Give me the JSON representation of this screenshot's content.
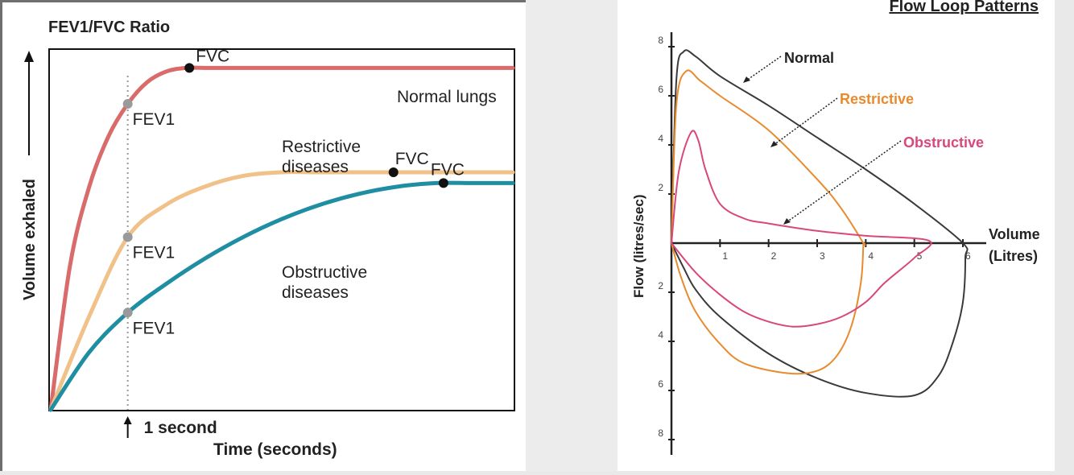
{
  "chart_data": [
    {
      "type": "line",
      "title": "FEV1/FVC Ratio",
      "xlabel": "Time (seconds)",
      "ylabel": "Volume exhaled",
      "x_marker_label": "1 second",
      "x_marker_value": 1,
      "xlim": [
        0,
        6
      ],
      "ylim": [
        0,
        1
      ],
      "grid": false,
      "legend": "none",
      "series": [
        {
          "name": "Normal lungs",
          "color": "#d96b6b",
          "x": [
            0,
            0.25,
            0.5,
            0.75,
            1.0,
            1.25,
            1.5,
            1.75,
            2.0,
            2.5,
            3.0,
            4.0,
            5.0,
            6.0
          ],
          "values": [
            0,
            0.4,
            0.62,
            0.76,
            0.85,
            0.91,
            0.94,
            0.95,
            0.95,
            0.95,
            0.95,
            0.95,
            0.95,
            0.95
          ],
          "fev1": {
            "x": 1.0,
            "y": 0.85,
            "label": "FEV1"
          },
          "fvc": {
            "x": 1.8,
            "y": 0.95,
            "label": "FVC"
          }
        },
        {
          "name": "Restrictive diseases",
          "color": "#f0c28a",
          "x": [
            0,
            0.5,
            1.0,
            1.5,
            2.0,
            2.5,
            3.0,
            3.5,
            4.0,
            4.5,
            5.0,
            5.5,
            6.0
          ],
          "values": [
            0,
            0.26,
            0.48,
            0.57,
            0.62,
            0.65,
            0.66,
            0.66,
            0.66,
            0.66,
            0.66,
            0.66,
            0.66
          ],
          "fev1": {
            "x": 1.0,
            "y": 0.48,
            "label": "FEV1"
          },
          "fvc": {
            "x": 4.45,
            "y": 0.66,
            "label": "FVC"
          }
        },
        {
          "name": "Obstructive diseases",
          "color": "#1f8ea3",
          "x": [
            0,
            0.5,
            1.0,
            1.5,
            2.0,
            2.5,
            3.0,
            3.5,
            4.0,
            4.5,
            5.0,
            5.5,
            6.0
          ],
          "values": [
            0,
            0.16,
            0.27,
            0.35,
            0.42,
            0.48,
            0.53,
            0.57,
            0.6,
            0.62,
            0.63,
            0.63,
            0.63
          ],
          "fev1": {
            "x": 1.0,
            "y": 0.27,
            "label": "FEV1"
          },
          "fvc": {
            "x": 5.1,
            "y": 0.63,
            "label": "FVC"
          }
        }
      ],
      "annotations": {
        "normal": "Normal lungs",
        "restrictive_line1": "Restrictive",
        "restrictive_line2": "diseases",
        "obstructive_line1": "Obstructive",
        "obstructive_line2": "diseases"
      }
    },
    {
      "type": "line",
      "title": "Flow Loop Patterns",
      "xlabel_line1": "Volume",
      "xlabel_line2": "(Litres)",
      "ylabel": "Flow (litres/sec)",
      "xlim": [
        0,
        6.5
      ],
      "ylim": [
        -8.5,
        8.5
      ],
      "x_ticks": [
        1,
        2,
        3,
        4,
        5,
        6
      ],
      "y_ticks_up": [
        2,
        4,
        6,
        8
      ],
      "y_ticks_down": [
        2,
        4,
        6,
        8
      ],
      "grid": false,
      "legend": "annotations",
      "series": [
        {
          "name": "Normal",
          "color": "#3a3a3a",
          "x": [
            0,
            0.1,
            0.25,
            0.5,
            1,
            2,
            3,
            4,
            5,
            6,
            6.05,
            6,
            5.8,
            5.5,
            5,
            4,
            3,
            2,
            1,
            0.5,
            0.25,
            0
          ],
          "values": [
            0,
            6.6,
            7.8,
            7.6,
            6.8,
            5.6,
            4.3,
            3.0,
            1.6,
            0,
            -0.6,
            -2.4,
            -4.0,
            -5.4,
            -6.2,
            -6.1,
            -5.5,
            -4.5,
            -3.0,
            -1.9,
            -1.0,
            0
          ]
        },
        {
          "name": "Restrictive",
          "color": "#e88b2e",
          "x": [
            0,
            0.1,
            0.3,
            0.6,
            1,
            2,
            3,
            3.5,
            3.95,
            3.95,
            3.9,
            3.7,
            3.4,
            3.0,
            2.4,
            1.5,
            1,
            0.5,
            0.2,
            0
          ],
          "values": [
            0,
            5.6,
            7.0,
            6.6,
            6.0,
            4.6,
            2.6,
            1.4,
            0,
            -0.1,
            -1.6,
            -3.4,
            -4.6,
            -5.2,
            -5.3,
            -4.9,
            -4.1,
            -2.8,
            -1.4,
            0
          ]
        },
        {
          "name": "Obstructive",
          "color": "#d9477d",
          "x": [
            0,
            0.15,
            0.4,
            0.55,
            0.7,
            1,
            1.5,
            2,
            3,
            4,
            5.3,
            5,
            4.4,
            4,
            3.5,
            3,
            2.5,
            2,
            1.5,
            1,
            0.5,
            0
          ],
          "values": [
            0,
            2.9,
            4.5,
            4.2,
            3.0,
            1.6,
            1.0,
            0.8,
            0.5,
            0.3,
            0.1,
            -0.6,
            -1.6,
            -2.4,
            -3.0,
            -3.3,
            -3.4,
            -3.2,
            -2.8,
            -2.1,
            -1.2,
            0
          ]
        }
      ],
      "annotations": {
        "normal": "Normal",
        "restrictive": "Restrictive",
        "obstructive": "Obstructive"
      }
    }
  ]
}
